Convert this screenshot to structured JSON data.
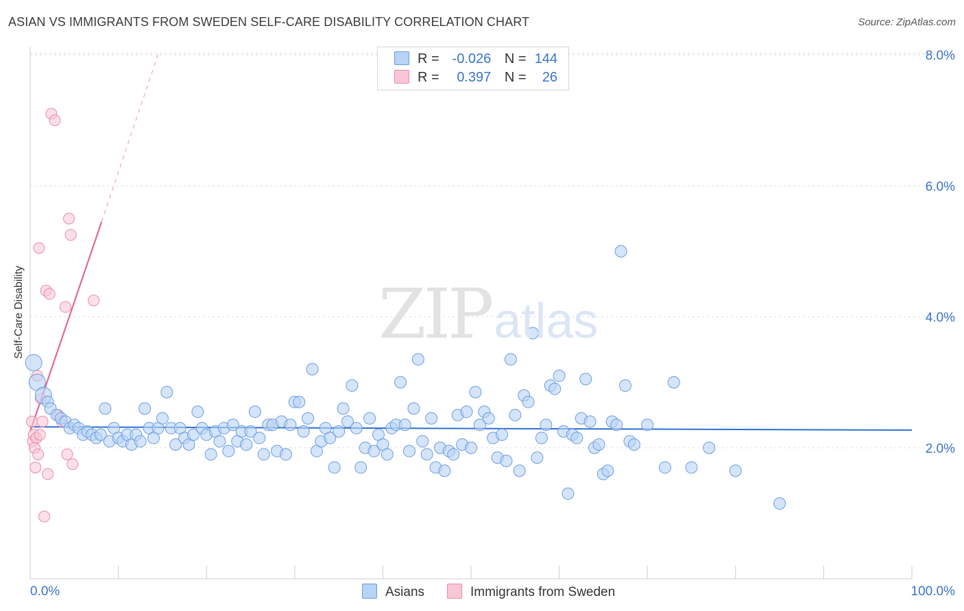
{
  "title": "ASIAN VS IMMIGRANTS FROM SWEDEN SELF-CARE DISABILITY CORRELATION CHART",
  "source": "Source: ZipAtlas.com",
  "watermark": {
    "zip": "ZIP",
    "atlas": "atlas"
  },
  "legend": {
    "asians": {
      "r_label": "R =",
      "r_value": "-0.026",
      "n_label": "N =",
      "n_value": "144"
    },
    "sweden": {
      "r_label": "R =",
      "r_value": "0.397",
      "n_label": "N =",
      "n_value": "26"
    }
  },
  "colors": {
    "asians_fill": "#b8d3f5",
    "asians_stroke": "#6b9be0",
    "asians_line": "#2c6fd1",
    "sweden_fill": "#f9c6d6",
    "sweden_stroke": "#e98aa8",
    "sweden_line": "#e0679a",
    "tick_label": "#3a74c9",
    "grid": "#dddddd"
  },
  "chart_data": {
    "type": "scatter",
    "title": "ASIAN VS IMMIGRANTS FROM SWEDEN SELF-CARE DISABILITY CORRELATION CHART",
    "xlabel": "",
    "ylabel": "Self-Care Disability",
    "xlim": [
      0,
      100
    ],
    "ylim": [
      0,
      8.2
    ],
    "y_ticks": [
      2.0,
      4.0,
      6.0,
      8.0
    ],
    "y_tick_labels": [
      "2.0%",
      "4.0%",
      "6.0%",
      "8.0%"
    ],
    "x_tick_labels": [
      "0.0%",
      "100.0%"
    ],
    "legend_position": "top-center",
    "series": [
      {
        "name": "Asians",
        "trend": {
          "x": [
            0,
            100
          ],
          "y": [
            2.32,
            2.27
          ]
        },
        "points": [
          [
            0.4,
            3.3
          ],
          [
            0.8,
            3.0
          ],
          [
            1.5,
            2.8
          ],
          [
            2.0,
            2.7
          ],
          [
            2.3,
            2.6
          ],
          [
            3.0,
            2.5
          ],
          [
            3.5,
            2.45
          ],
          [
            4.0,
            2.4
          ],
          [
            4.5,
            2.3
          ],
          [
            5.0,
            2.35
          ],
          [
            5.5,
            2.3
          ],
          [
            6.0,
            2.2
          ],
          [
            6.5,
            2.25
          ],
          [
            7.0,
            2.2
          ],
          [
            7.5,
            2.15
          ],
          [
            8.0,
            2.2
          ],
          [
            8.5,
            2.6
          ],
          [
            9.0,
            2.1
          ],
          [
            9.5,
            2.3
          ],
          [
            10.0,
            2.15
          ],
          [
            10.5,
            2.1
          ],
          [
            11.0,
            2.2
          ],
          [
            11.5,
            2.05
          ],
          [
            12.0,
            2.2
          ],
          [
            12.5,
            2.1
          ],
          [
            13.0,
            2.6
          ],
          [
            13.5,
            2.3
          ],
          [
            14.0,
            2.15
          ],
          [
            14.5,
            2.3
          ],
          [
            15.0,
            2.45
          ],
          [
            15.5,
            2.85
          ],
          [
            16.0,
            2.3
          ],
          [
            16.5,
            2.05
          ],
          [
            17.0,
            2.3
          ],
          [
            17.5,
            2.15
          ],
          [
            18.0,
            2.05
          ],
          [
            18.5,
            2.2
          ],
          [
            19.0,
            2.55
          ],
          [
            19.5,
            2.3
          ],
          [
            20.0,
            2.2
          ],
          [
            20.5,
            1.9
          ],
          [
            21.0,
            2.25
          ],
          [
            21.5,
            2.1
          ],
          [
            22.0,
            2.3
          ],
          [
            22.5,
            1.95
          ],
          [
            23.0,
            2.35
          ],
          [
            23.5,
            2.1
          ],
          [
            24.0,
            2.25
          ],
          [
            24.5,
            2.05
          ],
          [
            25.0,
            2.25
          ],
          [
            25.5,
            2.55
          ],
          [
            26.0,
            2.15
          ],
          [
            26.5,
            1.9
          ],
          [
            27.0,
            2.35
          ],
          [
            27.5,
            2.35
          ],
          [
            28.0,
            1.95
          ],
          [
            28.5,
            2.4
          ],
          [
            29.0,
            1.9
          ],
          [
            29.5,
            2.35
          ],
          [
            30.0,
            2.7
          ],
          [
            30.5,
            2.7
          ],
          [
            31.0,
            2.25
          ],
          [
            31.5,
            2.45
          ],
          [
            32.0,
            3.2
          ],
          [
            32.5,
            1.95
          ],
          [
            33.0,
            2.1
          ],
          [
            33.5,
            2.3
          ],
          [
            34.0,
            2.15
          ],
          [
            34.5,
            1.7
          ],
          [
            35.0,
            2.25
          ],
          [
            35.5,
            2.6
          ],
          [
            36.0,
            2.4
          ],
          [
            36.5,
            2.95
          ],
          [
            37.0,
            2.3
          ],
          [
            37.5,
            1.7
          ],
          [
            38.0,
            2.0
          ],
          [
            38.5,
            2.45
          ],
          [
            39.0,
            1.95
          ],
          [
            39.5,
            2.2
          ],
          [
            40.0,
            2.05
          ],
          [
            40.5,
            1.9
          ],
          [
            41.0,
            2.3
          ],
          [
            41.5,
            2.35
          ],
          [
            42.0,
            3.0
          ],
          [
            42.5,
            2.35
          ],
          [
            43.0,
            1.95
          ],
          [
            43.5,
            2.6
          ],
          [
            44.0,
            3.35
          ],
          [
            44.5,
            2.1
          ],
          [
            45.0,
            1.9
          ],
          [
            45.5,
            2.45
          ],
          [
            46.0,
            1.7
          ],
          [
            46.5,
            2.0
          ],
          [
            47.0,
            1.65
          ],
          [
            47.5,
            1.95
          ],
          [
            48.0,
            1.9
          ],
          [
            48.5,
            2.5
          ],
          [
            49.0,
            2.05
          ],
          [
            49.5,
            2.55
          ],
          [
            50.0,
            2.0
          ],
          [
            50.5,
            2.85
          ],
          [
            51.0,
            2.35
          ],
          [
            51.5,
            2.55
          ],
          [
            52.0,
            2.45
          ],
          [
            52.5,
            2.15
          ],
          [
            53.0,
            1.85
          ],
          [
            53.5,
            2.2
          ],
          [
            54.0,
            1.8
          ],
          [
            54.5,
            3.35
          ],
          [
            55.0,
            2.5
          ],
          [
            55.5,
            1.65
          ],
          [
            56.0,
            2.8
          ],
          [
            56.5,
            2.7
          ],
          [
            57.0,
            3.75
          ],
          [
            57.5,
            1.85
          ],
          [
            58.0,
            2.15
          ],
          [
            58.5,
            2.35
          ],
          [
            59.0,
            2.95
          ],
          [
            59.5,
            2.9
          ],
          [
            60.0,
            3.1
          ],
          [
            60.5,
            2.25
          ],
          [
            61.0,
            1.3
          ],
          [
            61.5,
            2.2
          ],
          [
            62.0,
            2.15
          ],
          [
            62.5,
            2.45
          ],
          [
            63.0,
            3.05
          ],
          [
            63.5,
            2.4
          ],
          [
            64.0,
            2.0
          ],
          [
            64.5,
            2.05
          ],
          [
            65.0,
            1.6
          ],
          [
            65.5,
            1.65
          ],
          [
            66.0,
            2.4
          ],
          [
            66.5,
            2.35
          ],
          [
            67.0,
            5.0
          ],
          [
            67.5,
            2.95
          ],
          [
            68.0,
            2.1
          ],
          [
            68.5,
            2.05
          ],
          [
            70.0,
            2.35
          ],
          [
            72.0,
            1.7
          ],
          [
            73.0,
            3.0
          ],
          [
            75.0,
            1.7
          ],
          [
            77.0,
            2.0
          ],
          [
            80.0,
            1.65
          ],
          [
            85.0,
            1.15
          ]
        ]
      },
      {
        "name": "Immigrants from Sweden",
        "trend": {
          "x": [
            0,
            8.1
          ],
          "y": [
            2.25,
            5.45
          ],
          "dashed_to": {
            "x": 14.5,
            "y": 8.0
          }
        },
        "points": [
          [
            0.2,
            2.4
          ],
          [
            0.3,
            2.1
          ],
          [
            0.4,
            2.2
          ],
          [
            0.5,
            2.0
          ],
          [
            0.6,
            1.7
          ],
          [
            0.7,
            2.15
          ],
          [
            0.8,
            3.1
          ],
          [
            0.9,
            1.9
          ],
          [
            1.0,
            5.05
          ],
          [
            1.2,
            2.75
          ],
          [
            1.4,
            2.4
          ],
          [
            1.6,
            0.95
          ],
          [
            1.8,
            4.4
          ],
          [
            2.0,
            1.6
          ],
          [
            2.2,
            4.35
          ],
          [
            2.4,
            7.1
          ],
          [
            2.8,
            7.0
          ],
          [
            3.2,
            2.5
          ],
          [
            3.6,
            2.4
          ],
          [
            4.0,
            4.15
          ],
          [
            4.2,
            1.9
          ],
          [
            4.4,
            5.5
          ],
          [
            4.6,
            5.25
          ],
          [
            4.8,
            1.75
          ],
          [
            7.2,
            4.25
          ],
          [
            1.1,
            2.2
          ]
        ]
      }
    ]
  },
  "bottom_legend": {
    "asians": "Asians",
    "sweden": "Immigrants from Sweden"
  }
}
